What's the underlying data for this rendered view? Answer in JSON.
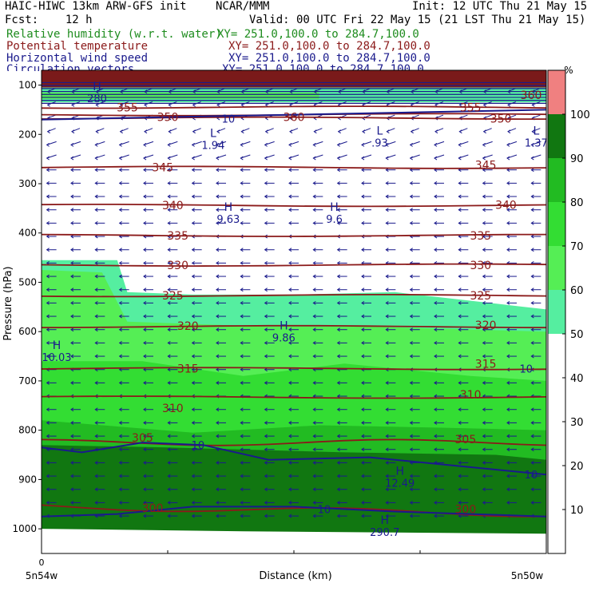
{
  "header": {
    "line1_left": "HAIC-HIWC 13km ARW-GFS init",
    "line1_mid": "NCAR/MMM",
    "line1_right": "Init: 12 UTC Thu 21 May 15",
    "line2_left": "Fcst:    12 h",
    "line2_right": "Valid: 00 UTC Fri 22 May 15 (21 LST Thu 21 May 15)",
    "fields": [
      {
        "name": "Relative humidity (w.r.t. water)",
        "xy": "XY= 251.0,100.0 to 284.7,100.0",
        "color": "#1e8c1e"
      },
      {
        "name": "Potential temperature",
        "xy": "XY= 251.0,100.0 to 284.7,100.0",
        "color": "#8b1a1a"
      },
      {
        "name": "Horizontal wind speed",
        "xy": "XY= 251.0,100.0 to 284.7,100.0",
        "color": "#1a1a8c"
      },
      {
        "name": "Circulation vectors",
        "xy": "XY= 251.0,100.0 to 284.7,100.0",
        "color": "#1a1a8c"
      }
    ]
  },
  "chart_data": {
    "type": "contour-cross-section",
    "xlabel": "Distance (km)",
    "ylabel": "Pressure (hPa)",
    "x_tick_label": "0",
    "x_start_label": "5n54w",
    "x_end_label": "5n50w",
    "y_ticks": [
      100,
      200,
      300,
      400,
      500,
      600,
      700,
      800,
      900,
      1000
    ],
    "ylim": [
      1050,
      70
    ],
    "colorbar": {
      "unit": "%",
      "ticks": [
        10,
        20,
        30,
        40,
        50,
        60,
        70,
        80,
        90,
        100
      ],
      "bands": [
        {
          "from": 0,
          "to": 50,
          "color": "#ffffff"
        },
        {
          "from": 50,
          "to": 60,
          "color": "#55eea0"
        },
        {
          "from": 60,
          "to": 70,
          "color": "#55ee55"
        },
        {
          "from": 70,
          "to": 80,
          "color": "#33dd33"
        },
        {
          "from": 80,
          "to": 90,
          "color": "#22bb22"
        },
        {
          "from": 90,
          "to": 100,
          "color": "#117711"
        },
        {
          "from": 100,
          "to": 110,
          "color": "#f08080"
        }
      ]
    },
    "theta_contours": [
      {
        "value": 360,
        "p": 160
      },
      {
        "value": 355,
        "p": 145
      },
      {
        "value": 350,
        "p": 167
      },
      {
        "value": 345,
        "p": 267
      },
      {
        "value": 340,
        "p": 344
      },
      {
        "value": 335,
        "p": 405
      },
      {
        "value": 330,
        "p": 465
      },
      {
        "value": 325,
        "p": 527
      },
      {
        "value": 320,
        "p": 590
      },
      {
        "value": 315,
        "p": 675
      },
      {
        "value": 310,
        "p": 733
      },
      {
        "value": 305,
        "p": 825
      },
      {
        "value": 300,
        "p": 955
      }
    ],
    "theta_labels": [
      {
        "text": "360",
        "x_frac": 0.5,
        "p": 165
      },
      {
        "text": "355",
        "x_frac": 0.17,
        "p": 145
      },
      {
        "text": "355",
        "x_frac": 0.85,
        "p": 145
      },
      {
        "text": "350",
        "x_frac": 0.25,
        "p": 165
      },
      {
        "text": "350",
        "x_frac": 0.91,
        "p": 168
      },
      {
        "text": "345",
        "x_frac": 0.24,
        "p": 267
      },
      {
        "text": "345",
        "x_frac": 0.88,
        "p": 262
      },
      {
        "text": "340",
        "x_frac": 0.26,
        "p": 344
      },
      {
        "text": "340",
        "x_frac": 0.92,
        "p": 343
      },
      {
        "text": "335",
        "x_frac": 0.27,
        "p": 405
      },
      {
        "text": "335",
        "x_frac": 0.87,
        "p": 405
      },
      {
        "text": "330",
        "x_frac": 0.27,
        "p": 465
      },
      {
        "text": "330",
        "x_frac": 0.87,
        "p": 465
      },
      {
        "text": "325",
        "x_frac": 0.26,
        "p": 527
      },
      {
        "text": "325",
        "x_frac": 0.87,
        "p": 527
      },
      {
        "text": "320",
        "x_frac": 0.29,
        "p": 588
      },
      {
        "text": "320",
        "x_frac": 0.88,
        "p": 587
      },
      {
        "text": "315",
        "x_frac": 0.29,
        "p": 675
      },
      {
        "text": "315",
        "x_frac": 0.88,
        "p": 665
      },
      {
        "text": "310",
        "x_frac": 0.26,
        "p": 755
      },
      {
        "text": "310",
        "x_frac": 0.85,
        "p": 728
      },
      {
        "text": "305",
        "x_frac": 0.2,
        "p": 815
      },
      {
        "text": "305",
        "x_frac": 0.84,
        "p": 818
      },
      {
        "text": "300",
        "x_frac": 0.22,
        "p": 958
      },
      {
        "text": "300",
        "x_frac": 0.84,
        "p": 960
      },
      {
        "text": "360",
        "x_frac": 0.97,
        "p": 120
      }
    ],
    "wind_labels": [
      {
        "text": "10",
        "x_frac": 0.37,
        "p": 168
      },
      {
        "text": "10",
        "x_frac": 0.31,
        "p": 830
      },
      {
        "text": "10",
        "x_frac": 0.97,
        "p": 890
      },
      {
        "text": "10",
        "x_frac": 0.56,
        "p": 960
      },
      {
        "text": "10",
        "x_frac": 0.96,
        "p": 675
      }
    ],
    "extrema": [
      {
        "type": "L",
        "value": "1.94",
        "x_frac": 0.34,
        "p": 215
      },
      {
        "type": "L",
        "value": ".93",
        "x_frac": 0.67,
        "p": 210
      },
      {
        "type": "L",
        "value": "1.37",
        "x_frac": 0.98,
        "p": 210
      },
      {
        "type": "H",
        "value": "9.63",
        "x_frac": 0.37,
        "p": 365
      },
      {
        "type": "H",
        "value": "9.6",
        "x_frac": 0.58,
        "p": 365
      },
      {
        "type": "H",
        "value": "9.86",
        "x_frac": 0.48,
        "p": 605
      },
      {
        "type": "H",
        "value": "10.03",
        "x_frac": 0.03,
        "p": 645
      },
      {
        "type": "H",
        "value": "12.49",
        "x_frac": 0.71,
        "p": 900
      },
      {
        "type": "H",
        "value": "290.7",
        "x_frac": 0.68,
        "p": 1000
      },
      {
        "type": "H",
        "value": "280",
        "x_frac": 0.11,
        "p": 120
      }
    ],
    "rh_regions": [
      {
        "min_rh": 50,
        "points": [
          [
            0,
            455
          ],
          [
            0.15,
            455
          ],
          [
            0.17,
            520
          ],
          [
            0.3,
            525
          ],
          [
            0.5,
            525
          ],
          [
            0.7,
            520
          ],
          [
            1,
            555
          ],
          [
            1,
            1050
          ],
          [
            0,
            1050
          ]
        ]
      },
      {
        "min_rh": 60,
        "points": [
          [
            0,
            475
          ],
          [
            0.12,
            480
          ],
          [
            0.17,
            580
          ],
          [
            0.45,
            590
          ],
          [
            0.65,
            590
          ],
          [
            1,
            600
          ],
          [
            1,
            1050
          ],
          [
            0,
            1050
          ]
        ]
      },
      {
        "min_rh": 70,
        "points": [
          [
            0,
            660
          ],
          [
            0.2,
            660
          ],
          [
            0.4,
            690
          ],
          [
            0.6,
            665
          ],
          [
            0.85,
            690
          ],
          [
            1,
            700
          ],
          [
            1,
            1050
          ],
          [
            0,
            1050
          ]
        ]
      },
      {
        "min_rh": 80,
        "points": [
          [
            0,
            780
          ],
          [
            0.3,
            805
          ],
          [
            0.55,
            790
          ],
          [
            0.8,
            795
          ],
          [
            1,
            800
          ],
          [
            1,
            1050
          ],
          [
            0,
            1050
          ]
        ]
      },
      {
        "min_rh": 90,
        "points": [
          [
            0,
            830
          ],
          [
            0.25,
            835
          ],
          [
            0.6,
            845
          ],
          [
            0.9,
            850
          ],
          [
            1,
            860
          ],
          [
            1,
            1050
          ],
          [
            0,
            1050
          ]
        ]
      }
    ]
  }
}
